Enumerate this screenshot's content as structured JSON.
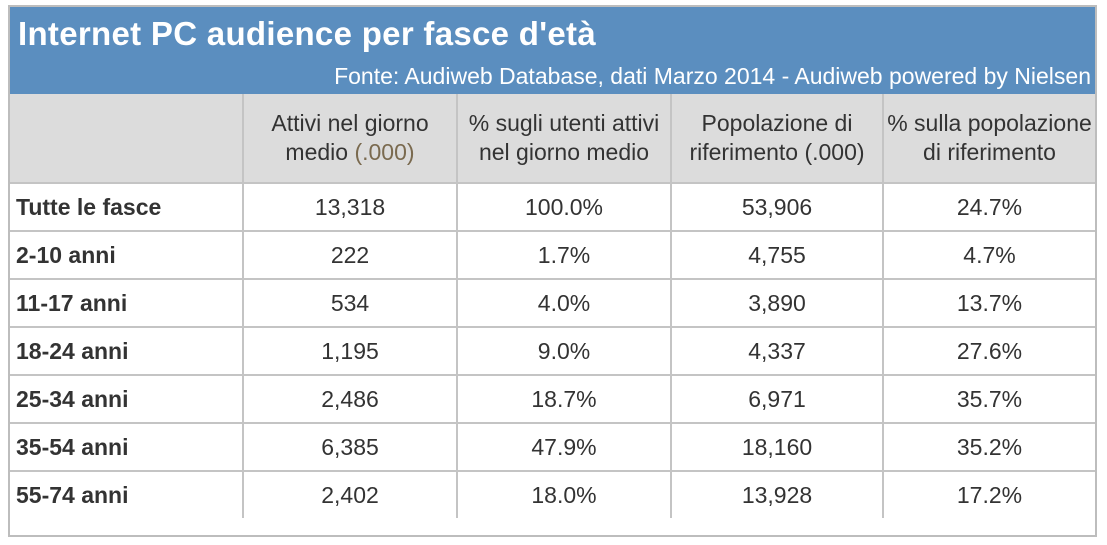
{
  "header": {
    "title": "Internet PC audience per fasce d'età",
    "source": "Fonte: Audiweb Database, dati Marzo 2014 - Audiweb powered by Nielsen"
  },
  "columns": {
    "c1_main": "Attivi nel giorno medio",
    "c1_unit": "(.000)",
    "c2": "% sugli utenti attivi nel giorno medio",
    "c3": "Popolazione di riferimento (.000)",
    "c4": "% sulla popolazione di riferimento"
  },
  "rows": [
    {
      "label": "Tutte le fasce",
      "attivi": "13,318",
      "pct_utenti": "100.0%",
      "popolazione": "53,906",
      "pct_pop": "24.7%"
    },
    {
      "label": "2-10 anni",
      "attivi": "222",
      "pct_utenti": "1.7%",
      "popolazione": "4,755",
      "pct_pop": "4.7%"
    },
    {
      "label": "11-17 anni",
      "attivi": "534",
      "pct_utenti": "4.0%",
      "popolazione": "3,890",
      "pct_pop": "13.7%"
    },
    {
      "label": "18-24 anni",
      "attivi": "1,195",
      "pct_utenti": "9.0%",
      "popolazione": "4,337",
      "pct_pop": "27.6%"
    },
    {
      "label": "25-34 anni",
      "attivi": "2,486",
      "pct_utenti": "18.7%",
      "popolazione": "6,971",
      "pct_pop": "35.7%"
    },
    {
      "label": "35-54 anni",
      "attivi": "6,385",
      "pct_utenti": "47.9%",
      "popolazione": "18,160",
      "pct_pop": "35.2%"
    },
    {
      "label": "55-74 anni",
      "attivi": "2,402",
      "pct_utenti": "18.0%",
      "popolazione": "13,928",
      "pct_pop": "17.2%"
    }
  ],
  "colors": {
    "title_bg": "#5b8ebf",
    "header_bg": "#dcdcdc",
    "border": "#c4c4c4",
    "text": "#333333"
  },
  "chart_data": {
    "type": "table",
    "title": "Internet PC audience per fasce d'età",
    "source": "Fonte: Audiweb Database, dati Marzo 2014 - Audiweb powered by Nielsen",
    "columns": [
      "Attivi nel giorno medio (.000)",
      "% sugli utenti attivi nel giorno medio",
      "Popolazione di riferimento (.000)",
      "% sulla popolazione di riferimento"
    ],
    "categories": [
      "Tutte le fasce",
      "2-10 anni",
      "11-17 anni",
      "18-24 anni",
      "25-34 anni",
      "35-54 anni",
      "55-74 anni"
    ],
    "series": [
      {
        "name": "Attivi nel giorno medio (.000)",
        "values": [
          13318,
          222,
          534,
          1195,
          2486,
          6385,
          2402
        ]
      },
      {
        "name": "% sugli utenti attivi nel giorno medio",
        "values": [
          100.0,
          1.7,
          4.0,
          9.0,
          18.7,
          47.9,
          18.0
        ]
      },
      {
        "name": "Popolazione di riferimento (.000)",
        "values": [
          53906,
          4755,
          3890,
          4337,
          6971,
          18160,
          13928
        ]
      },
      {
        "name": "% sulla popolazione di riferimento",
        "values": [
          24.7,
          4.7,
          13.7,
          27.6,
          35.7,
          35.2,
          17.2
        ]
      }
    ]
  }
}
